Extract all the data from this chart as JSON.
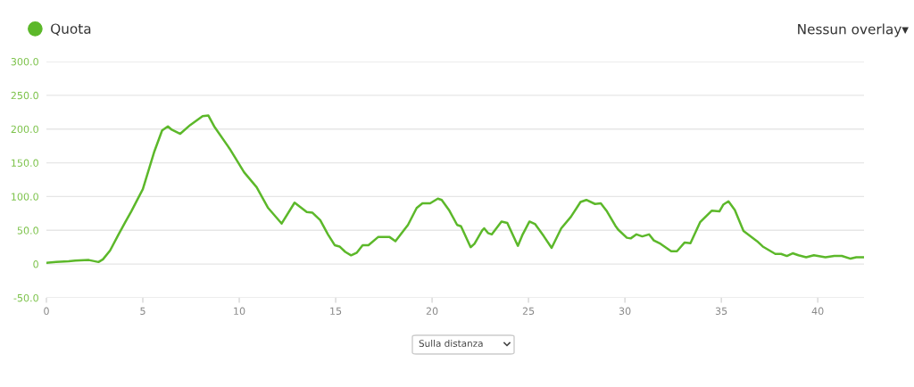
{
  "chart_data": {
    "type": "line",
    "x": [
      0,
      0.5,
      1.15,
      1.5,
      2.2,
      2.7,
      2.93,
      3.3,
      3.76,
      4.07,
      4.4,
      5.0,
      5.6,
      6.0,
      6.3,
      6.5,
      6.94,
      7.46,
      8.1,
      8.4,
      8.7,
      9.5,
      10.25,
      10.9,
      11.5,
      12.2,
      12.87,
      13.5,
      13.8,
      14.2,
      14.6,
      14.95,
      15.2,
      15.5,
      15.8,
      16.1,
      16.4,
      16.7,
      17.2,
      17.8,
      18.1,
      18.75,
      19.2,
      19.5,
      19.9,
      20.3,
      20.5,
      20.9,
      21.3,
      21.5,
      22.0,
      22.2,
      22.6,
      22.7,
      22.9,
      23.1,
      23.6,
      23.9,
      24.45,
      24.7,
      25.05,
      25.35,
      25.8,
      26.2,
      26.7,
      27.2,
      27.7,
      28.0,
      28.45,
      28.75,
      29.07,
      29.5,
      29.65,
      30.1,
      30.3,
      30.6,
      30.9,
      31.25,
      31.5,
      31.85,
      32.4,
      32.7,
      33.1,
      33.4,
      33.9,
      34.5,
      34.9,
      35.1,
      35.37,
      35.7,
      36.15,
      36.85,
      37.15,
      37.8,
      38.1,
      38.4,
      38.7,
      39.0,
      39.4,
      39.8,
      40.4,
      40.86,
      41.25,
      41.7,
      42.0,
      42.35
    ],
    "series": [
      {
        "name": "Quota",
        "color": "#5cb82a",
        "values": [
          2,
          3,
          4,
          5,
          6,
          3,
          7,
          20,
          45,
          61,
          78,
          111,
          167,
          198,
          204,
          199,
          193,
          206,
          219,
          220,
          204,
          171,
          136,
          114,
          83,
          60,
          91,
          77,
          76,
          65,
          44,
          28,
          26,
          18,
          13,
          17,
          28,
          28,
          40,
          40,
          34,
          58,
          83,
          90,
          90,
          97,
          95,
          79,
          58,
          56,
          25,
          30,
          50,
          53,
          46,
          44,
          63,
          61,
          27,
          44,
          63,
          59,
          41,
          24,
          53,
          70,
          92,
          95,
          89,
          90,
          78,
          57,
          51,
          39,
          38,
          44,
          41,
          44,
          35,
          30,
          19,
          19,
          32,
          31,
          62,
          79,
          78,
          88,
          93,
          80,
          49,
          34,
          26,
          15,
          15,
          12,
          16,
          13,
          10,
          13,
          10,
          12,
          12,
          8,
          10,
          10
        ]
      }
    ],
    "xlim": [
      0,
      42.4
    ],
    "ylim": [
      -50,
      300
    ],
    "xticks": [
      0,
      5,
      10,
      15,
      20,
      25,
      30,
      35,
      40
    ],
    "yticks": [
      {
        "value": -50,
        "label": "-50.0"
      },
      0,
      {
        "value": 50,
        "label": "50.0"
      },
      {
        "value": 100,
        "label": "100.0"
      },
      {
        "value": 150,
        "label": "150.0"
      },
      {
        "value": 200,
        "label": "200.0"
      },
      {
        "value": 250,
        "label": "250.0"
      },
      {
        "value": 300,
        "label": "300.0"
      }
    ],
    "grid": "y",
    "legend": "top left",
    "marker": "none",
    "line_style": "solid",
    "annotations": [
      "Nessun overlay▾",
      "Sulla distanza"
    ]
  }
}
